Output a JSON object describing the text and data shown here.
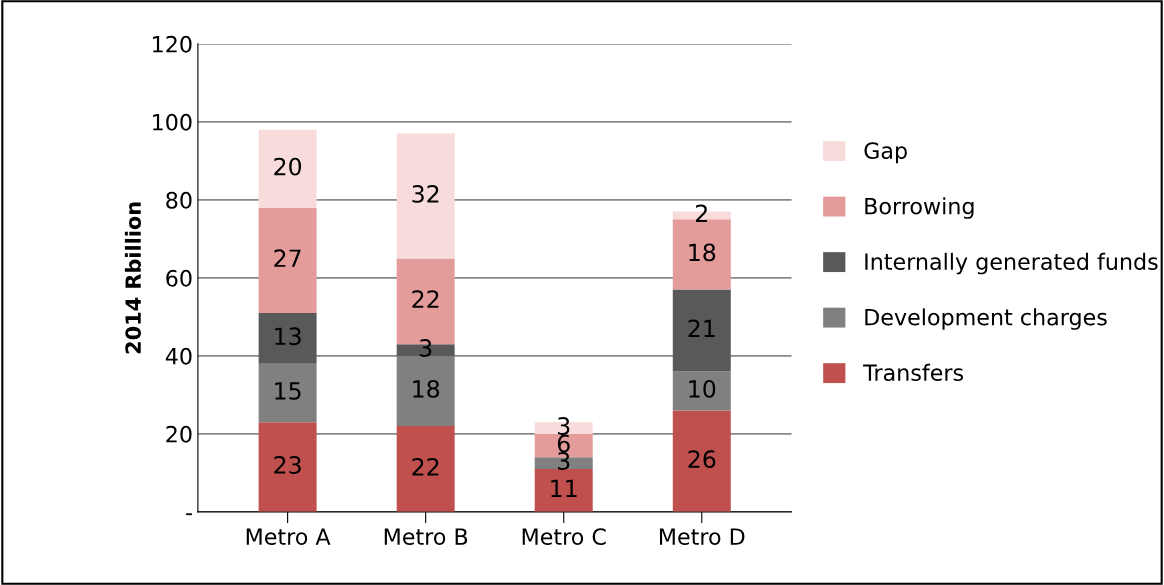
{
  "chart_data": {
    "type": "bar",
    "stacked": true,
    "ylabel": "2014 Rbillion",
    "categories": [
      "Metro A",
      "Metro B",
      "Metro C",
      "Metro D"
    ],
    "series": [
      {
        "name": "Transfers",
        "color": "#c0504d",
        "values": [
          23,
          22,
          11,
          26
        ]
      },
      {
        "name": "Development charges",
        "color": "#808080",
        "values": [
          15,
          18,
          3,
          10
        ]
      },
      {
        "name": "Internally generated funds",
        "color": "#595959",
        "values": [
          13,
          3,
          0,
          21
        ],
        "value_labels": [
          "13",
          "3",
          null,
          "21"
        ]
      },
      {
        "name": "Borrowing",
        "color": "#e39c9a",
        "values": [
          27,
          22,
          6,
          18
        ]
      },
      {
        "name": "Gap",
        "color": "#f8dcdb",
        "values": [
          20,
          32,
          3,
          2
        ]
      }
    ],
    "ylim": [
      0,
      120
    ],
    "yticks": [
      {
        "value": 0,
        "label": "-"
      },
      20,
      40,
      60,
      80,
      100,
      120
    ],
    "grid": "y",
    "legend": "right",
    "data_labels": true
  }
}
